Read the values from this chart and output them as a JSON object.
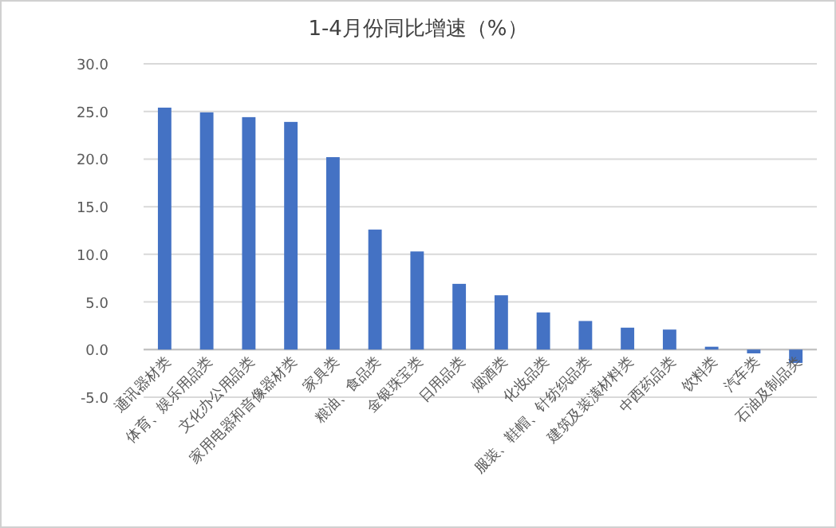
{
  "chart_data": {
    "type": "bar",
    "title": "1-4月份同比增速（%）",
    "categories": [
      "通讯器材类",
      "体育、娱乐用品类",
      "文化办公用品类",
      "家用电器和音像器材类",
      "家具类",
      "粮油、食品类",
      "金银珠宝类",
      "日用品类",
      "烟酒类",
      "化妆品类",
      "服装、鞋帽、针纺织品类",
      "建筑及装潢材料类",
      "中西药品类",
      "饮料类",
      "汽车类",
      "石油及制品类"
    ],
    "values": [
      25.4,
      24.9,
      24.4,
      23.9,
      20.2,
      12.6,
      10.3,
      6.9,
      5.7,
      3.9,
      3.0,
      2.3,
      2.1,
      0.3,
      -0.4,
      -1.4
    ],
    "color": "#4472c4",
    "ylim": [
      -5,
      30
    ],
    "yticks": [
      {
        "value": -5,
        "label": "-5.0"
      },
      {
        "value": 0,
        "label": "0.0"
      },
      {
        "value": 5,
        "label": "5.0"
      },
      {
        "value": 10,
        "label": "10.0"
      },
      {
        "value": 15,
        "label": "15.0"
      },
      {
        "value": 20,
        "label": "20.0"
      },
      {
        "value": 25,
        "label": "25.0"
      },
      {
        "value": 30,
        "label": "30.0"
      }
    ],
    "grid": "y"
  }
}
